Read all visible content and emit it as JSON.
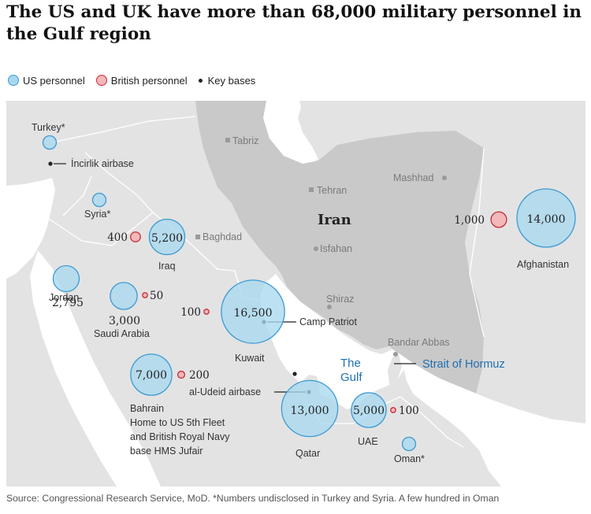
{
  "title": "The US and UK have more than 68,000 military personnel in the Gulf region",
  "legend": {
    "us": "US personnel",
    "uk": "British personnel",
    "base": "Key bases"
  },
  "colors": {
    "us_fill": "#a8d8f0",
    "us_stroke": "#3d9ad1",
    "uk_fill": "#f2b8ba",
    "uk_stroke": "#cc2a35",
    "land": "#e3e3e3",
    "sea": "#ffffff",
    "iran": "#c9c9c9",
    "water_label": "#1f6fb2"
  },
  "places": {
    "turkey": "Turkey*",
    "incirlik": "İncirlik airbase",
    "syria": "Syria*",
    "tabriz": "Tabriz",
    "tehran": "Tehran",
    "mashhad": "Mashhad",
    "iran": "Iran",
    "baghdad": "Baghdad",
    "isfahan": "Isfahan",
    "shiraz": "Shiraz",
    "bandar_abbas": "Bandar Abbas",
    "the_gulf_1": "The",
    "the_gulf_2": "Gulf",
    "strait": "Strait of Hormuz",
    "camp_patriot": "Camp Patriot",
    "al_udeid": "al-Udeid airbase",
    "iraq": "Iraq",
    "jordan": "Jordan",
    "saudi_arabia": "Saudi Arabia",
    "kuwait": "Kuwait",
    "bahrain": "Bahrain",
    "bahrain_note_1": "Home to US 5th Fleet",
    "bahrain_note_2": "and British Royal Navy",
    "bahrain_note_3": "base HMS Jufair",
    "qatar": "Qatar",
    "uae": "UAE",
    "oman": "Oman*",
    "afghanistan": "Afghanistan"
  },
  "personnel": {
    "afghanistan_us": 14000,
    "afghanistan_us_label": "14,000",
    "afghanistan_uk": 1000,
    "afghanistan_uk_label": "1,000",
    "iraq_us": 5200,
    "iraq_us_label": "5,200",
    "iraq_uk": 400,
    "iraq_uk_label": "400",
    "jordan_us": 2795,
    "jordan_us_label": "2,795",
    "saudi_us": 3000,
    "saudi_us_label": "3,000",
    "saudi_uk": 50,
    "saudi_uk_label": "50",
    "kuwait_us": 16500,
    "kuwait_us_label": "16,500",
    "kuwait_uk": 100,
    "kuwait_uk_label": "100",
    "bahrain_us": 7000,
    "bahrain_us_label": "7,000",
    "bahrain_uk": 200,
    "bahrain_uk_label": "200",
    "qatar_us": 13000,
    "qatar_us_label": "13,000",
    "uae_us": 5000,
    "uae_us_label": "5,000",
    "uae_uk": 100,
    "uae_uk_label": "100"
  },
  "source": "Source: Congressional Research Service, MoD. *Numbers undisclosed in Turkey and Syria. A few hundred in Oman"
}
